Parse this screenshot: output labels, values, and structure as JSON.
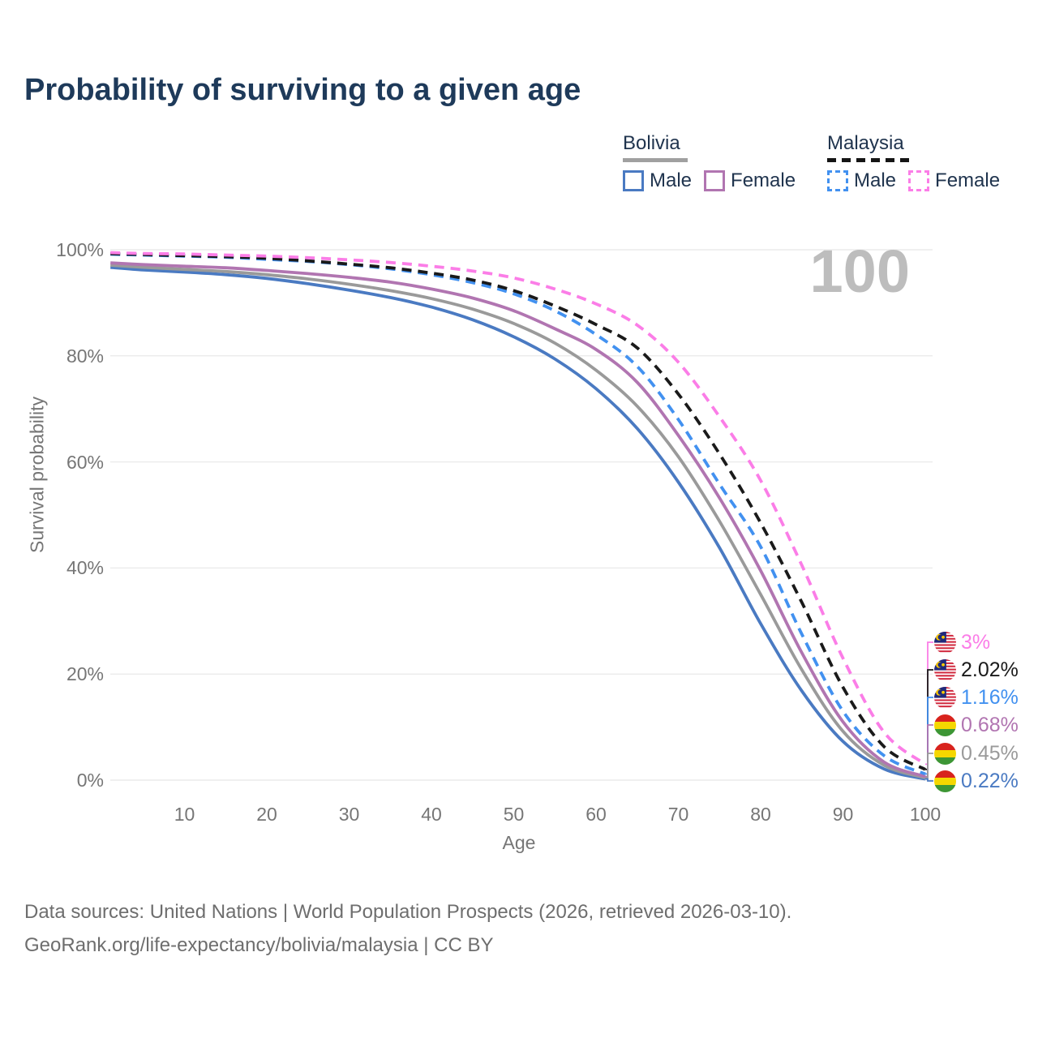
{
  "title": "Probability of surviving to a given age",
  "watermark": "100",
  "legend": {
    "bolivia": {
      "label": "Bolivia",
      "male": "Male",
      "female": "Female"
    },
    "malaysia": {
      "label": "Malaysia",
      "male": "Male",
      "female": "Female"
    }
  },
  "colors": {
    "bolivia_male": "#4a7ac2",
    "bolivia_total": "#9a9a9a",
    "bolivia_female": "#b175b1",
    "malaysia_male": "#4291f0",
    "malaysia_total": "#1a1a1a",
    "malaysia_female": "#fb7de7",
    "title_text": "#1e3a5a",
    "axis_text": "#767676",
    "gridline": "#ececec",
    "watermark": "#bdbdbd",
    "footer_text": "#6e6e6e"
  },
  "chart_data": {
    "type": "line",
    "title": "Probability of surviving to a given age",
    "xlabel": "Age",
    "ylabel": "Survival probability",
    "xlim": [
      0,
      100
    ],
    "ylim": [
      0,
      100
    ],
    "grid": "horizontal",
    "legend_position": "top-right",
    "x_ticks": [
      10,
      20,
      30,
      40,
      50,
      60,
      70,
      80,
      90,
      100
    ],
    "y_tick_values": [
      0,
      20,
      40,
      60,
      80,
      100
    ],
    "y_tick_labels": [
      "0%",
      "20%",
      "40%",
      "60%",
      "80%",
      "100%"
    ],
    "ages": [
      0,
      5,
      10,
      15,
      20,
      25,
      30,
      35,
      40,
      45,
      50,
      55,
      60,
      65,
      70,
      75,
      80,
      85,
      90,
      95,
      100
    ],
    "series": [
      {
        "name": "Malaysia Female",
        "country": "malaysia",
        "sex": "female",
        "style": "dashed",
        "color": "#fb7de7",
        "end_label": "3%",
        "values": [
          99.5,
          99.3,
          99.2,
          99.0,
          98.8,
          98.5,
          98.1,
          97.6,
          96.9,
          96.0,
          94.7,
          92.6,
          89.8,
          85.8,
          78.8,
          68.5,
          56.5,
          40.5,
          23.0,
          9.0,
          3.0
        ]
      },
      {
        "name": "Malaysia Both sexes",
        "country": "malaysia",
        "sex": "both",
        "style": "dashed",
        "color": "#1a1a1a",
        "end_label": "2.02%",
        "values": [
          99.3,
          99.1,
          98.9,
          98.7,
          98.4,
          97.9,
          97.3,
          96.6,
          95.6,
          94.3,
          92.3,
          89.4,
          85.9,
          81.5,
          72.8,
          61.5,
          48.5,
          33.5,
          17.5,
          6.3,
          2.02
        ]
      },
      {
        "name": "Malaysia Male",
        "country": "malaysia",
        "sex": "male",
        "style": "dashed",
        "color": "#4291f0",
        "end_label": "1.16%",
        "values": [
          99.2,
          99.0,
          98.8,
          98.6,
          98.2,
          97.8,
          97.2,
          96.4,
          95.3,
          93.8,
          91.7,
          88.5,
          84.0,
          78.0,
          68.0,
          55.8,
          44.0,
          27.5,
          13.0,
          4.6,
          1.16
        ]
      },
      {
        "name": "Bolivia Female",
        "country": "bolivia",
        "sex": "female",
        "style": "solid",
        "color": "#b175b1",
        "end_label": "0.68%",
        "values": [
          97.6,
          97.2,
          96.9,
          96.6,
          96.1,
          95.5,
          94.8,
          93.9,
          92.6,
          90.9,
          88.5,
          85.1,
          81.2,
          75.0,
          65.0,
          53.2,
          39.5,
          24.0,
          11.0,
          3.4,
          0.68
        ]
      },
      {
        "name": "Bolivia Both sexes",
        "country": "bolivia",
        "sex": "both",
        "style": "solid",
        "color": "#9a9a9a",
        "end_label": "0.45%",
        "values": [
          97.2,
          96.7,
          96.3,
          95.9,
          95.3,
          94.5,
          93.5,
          92.3,
          90.8,
          88.8,
          86.1,
          82.4,
          77.3,
          70.5,
          61.0,
          48.8,
          35.0,
          20.8,
          9.2,
          2.8,
          0.45
        ]
      },
      {
        "name": "Bolivia Male",
        "country": "bolivia",
        "sex": "male",
        "style": "solid",
        "color": "#4a7ac2",
        "end_label": "0.22%",
        "values": [
          96.8,
          96.2,
          95.8,
          95.3,
          94.6,
          93.6,
          92.4,
          91.0,
          89.2,
          86.8,
          83.6,
          79.4,
          73.8,
          66.3,
          56.2,
          43.8,
          29.5,
          16.8,
          7.3,
          2.1,
          0.22
        ]
      }
    ]
  },
  "footer": {
    "line1": "Data sources: United Nations | World Population Prospects (2026, retrieved 2026-03-10).",
    "line2": "GeoRank.org/life-expectancy/bolivia/malaysia | CC BY"
  }
}
